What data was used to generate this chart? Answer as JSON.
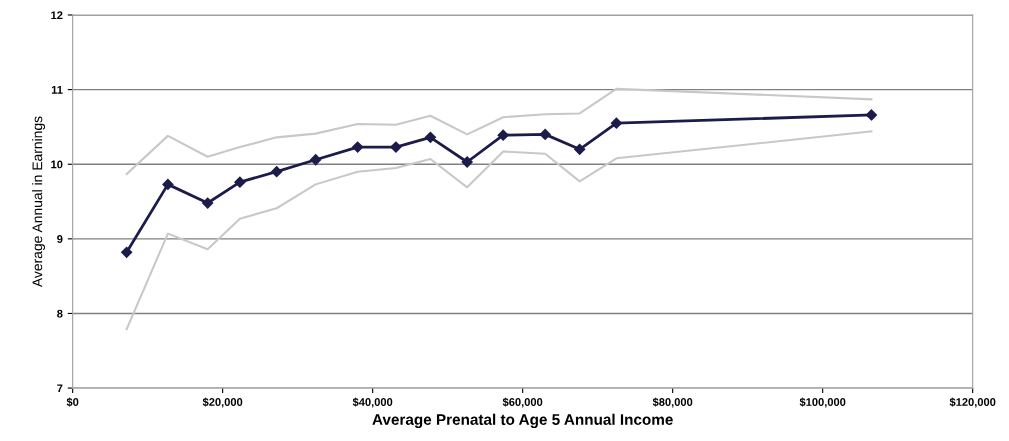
{
  "chart_data": {
    "type": "line",
    "xlabel": "Average Prenatal to Age 5 Annual Income",
    "ylabel": "Average Annual in Earnings",
    "x": [
      7200,
      12700,
      18000,
      22300,
      27200,
      32400,
      38000,
      43100,
      47700,
      52600,
      57400,
      63000,
      67600,
      72500,
      106500
    ],
    "series": [
      {
        "color": "#c8c8c8",
        "marker": "none",
        "values": [
          9.87,
          10.38,
          10.1,
          10.23,
          10.36,
          10.41,
          10.54,
          10.53,
          10.65,
          10.4,
          10.63,
          10.67,
          10.68,
          11.01,
          10.87
        ]
      },
      {
        "color": "#c8c8c8",
        "marker": "none",
        "values": [
          7.79,
          9.07,
          8.86,
          9.27,
          9.41,
          9.73,
          9.9,
          9.95,
          10.07,
          9.69,
          10.17,
          10.14,
          9.77,
          10.08,
          10.44
        ]
      },
      {
        "color": "#1c1c4a",
        "marker": "diamond",
        "values": [
          8.82,
          9.73,
          9.48,
          9.76,
          9.9,
          10.06,
          10.23,
          10.23,
          10.36,
          10.03,
          10.39,
          10.4,
          10.2,
          10.55,
          10.66
        ]
      }
    ],
    "xlim": [
      0,
      120000
    ],
    "xticks": [
      {
        "value": 0,
        "label": "$0"
      },
      {
        "value": 20000,
        "label": "$20,000"
      },
      {
        "value": 40000,
        "label": "$40,000"
      },
      {
        "value": 60000,
        "label": "$60,000"
      },
      {
        "value": 80000,
        "label": "$80,000"
      },
      {
        "value": 100000,
        "label": "$100,000"
      },
      {
        "value": 120000,
        "label": "$120,000"
      }
    ],
    "ylim": [
      7,
      12
    ],
    "yticks": [
      7,
      8,
      9,
      10,
      11,
      12
    ],
    "grid": "y"
  }
}
